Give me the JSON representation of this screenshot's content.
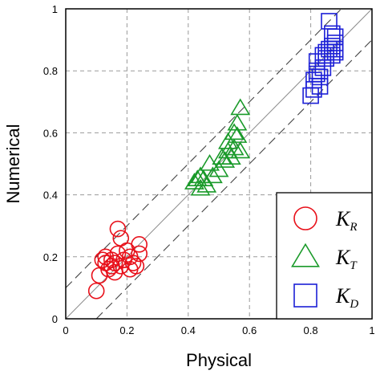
{
  "chart_data": {
    "type": "scatter",
    "xlabel": "Physical",
    "ylabel": "Numerical",
    "xlim": [
      0,
      1
    ],
    "ylim": [
      0,
      1
    ],
    "xticks": [
      0,
      0.2,
      0.4,
      0.6,
      0.8,
      1
    ],
    "yticks": [
      0,
      0.2,
      0.4,
      0.6,
      0.8,
      1
    ],
    "xtick_labels": [
      "0",
      "0.2",
      "0.4",
      "0.6",
      "0.8",
      "1"
    ],
    "ytick_labels": [
      "0",
      "0.2",
      "0.4",
      "0.6",
      "0.8",
      "1"
    ],
    "grid": true,
    "grid_style": "dashed",
    "reference_lines": [
      {
        "kind": "identity",
        "slope": 1,
        "intercept": 0,
        "style": "solid"
      },
      {
        "kind": "upper-bound",
        "slope": 1,
        "intercept": 0.1,
        "style": "dashed"
      },
      {
        "kind": "lower-bound",
        "slope": 1,
        "intercept": -0.1,
        "style": "dashed"
      }
    ],
    "legend_position": "bottom-right",
    "series": [
      {
        "name": "K",
        "subscript": "R",
        "marker": "circle",
        "color": "#e8101a",
        "points": [
          [
            0.1,
            0.09
          ],
          [
            0.11,
            0.14
          ],
          [
            0.12,
            0.19
          ],
          [
            0.13,
            0.18
          ],
          [
            0.13,
            0.2
          ],
          [
            0.14,
            0.16
          ],
          [
            0.15,
            0.17
          ],
          [
            0.15,
            0.19
          ],
          [
            0.16,
            0.18
          ],
          [
            0.16,
            0.15
          ],
          [
            0.17,
            0.21
          ],
          [
            0.17,
            0.29
          ],
          [
            0.18,
            0.26
          ],
          [
            0.18,
            0.17
          ],
          [
            0.19,
            0.19
          ],
          [
            0.2,
            0.22
          ],
          [
            0.21,
            0.2
          ],
          [
            0.21,
            0.16
          ],
          [
            0.22,
            0.18
          ],
          [
            0.23,
            0.17
          ],
          [
            0.24,
            0.24
          ],
          [
            0.24,
            0.21
          ]
        ]
      },
      {
        "name": "K",
        "subscript": "T",
        "marker": "triangle",
        "color": "#1a9a2a",
        "points": [
          [
            0.42,
            0.44
          ],
          [
            0.43,
            0.45
          ],
          [
            0.44,
            0.42
          ],
          [
            0.44,
            0.46
          ],
          [
            0.45,
            0.45
          ],
          [
            0.46,
            0.43
          ],
          [
            0.47,
            0.5
          ],
          [
            0.48,
            0.46
          ],
          [
            0.5,
            0.48
          ],
          [
            0.51,
            0.52
          ],
          [
            0.52,
            0.51
          ],
          [
            0.53,
            0.54
          ],
          [
            0.53,
            0.57
          ],
          [
            0.54,
            0.52
          ],
          [
            0.55,
            0.6
          ],
          [
            0.55,
            0.55
          ],
          [
            0.56,
            0.59
          ],
          [
            0.56,
            0.63
          ],
          [
            0.57,
            0.54
          ],
          [
            0.57,
            0.68
          ]
        ]
      },
      {
        "name": "K",
        "subscript": "D",
        "marker": "square",
        "color": "#1c1fd6",
        "points": [
          [
            0.8,
            0.72
          ],
          [
            0.81,
            0.74
          ],
          [
            0.81,
            0.77
          ],
          [
            0.82,
            0.79
          ],
          [
            0.82,
            0.8
          ],
          [
            0.82,
            0.83
          ],
          [
            0.83,
            0.75
          ],
          [
            0.83,
            0.78
          ],
          [
            0.84,
            0.81
          ],
          [
            0.84,
            0.85
          ],
          [
            0.85,
            0.84
          ],
          [
            0.85,
            0.86
          ],
          [
            0.86,
            0.96
          ],
          [
            0.86,
            0.87
          ],
          [
            0.87,
            0.85
          ],
          [
            0.87,
            0.88
          ],
          [
            0.87,
            0.92
          ],
          [
            0.88,
            0.86
          ],
          [
            0.88,
            0.89
          ],
          [
            0.88,
            0.87
          ],
          [
            0.88,
            0.91
          ]
        ]
      }
    ]
  }
}
